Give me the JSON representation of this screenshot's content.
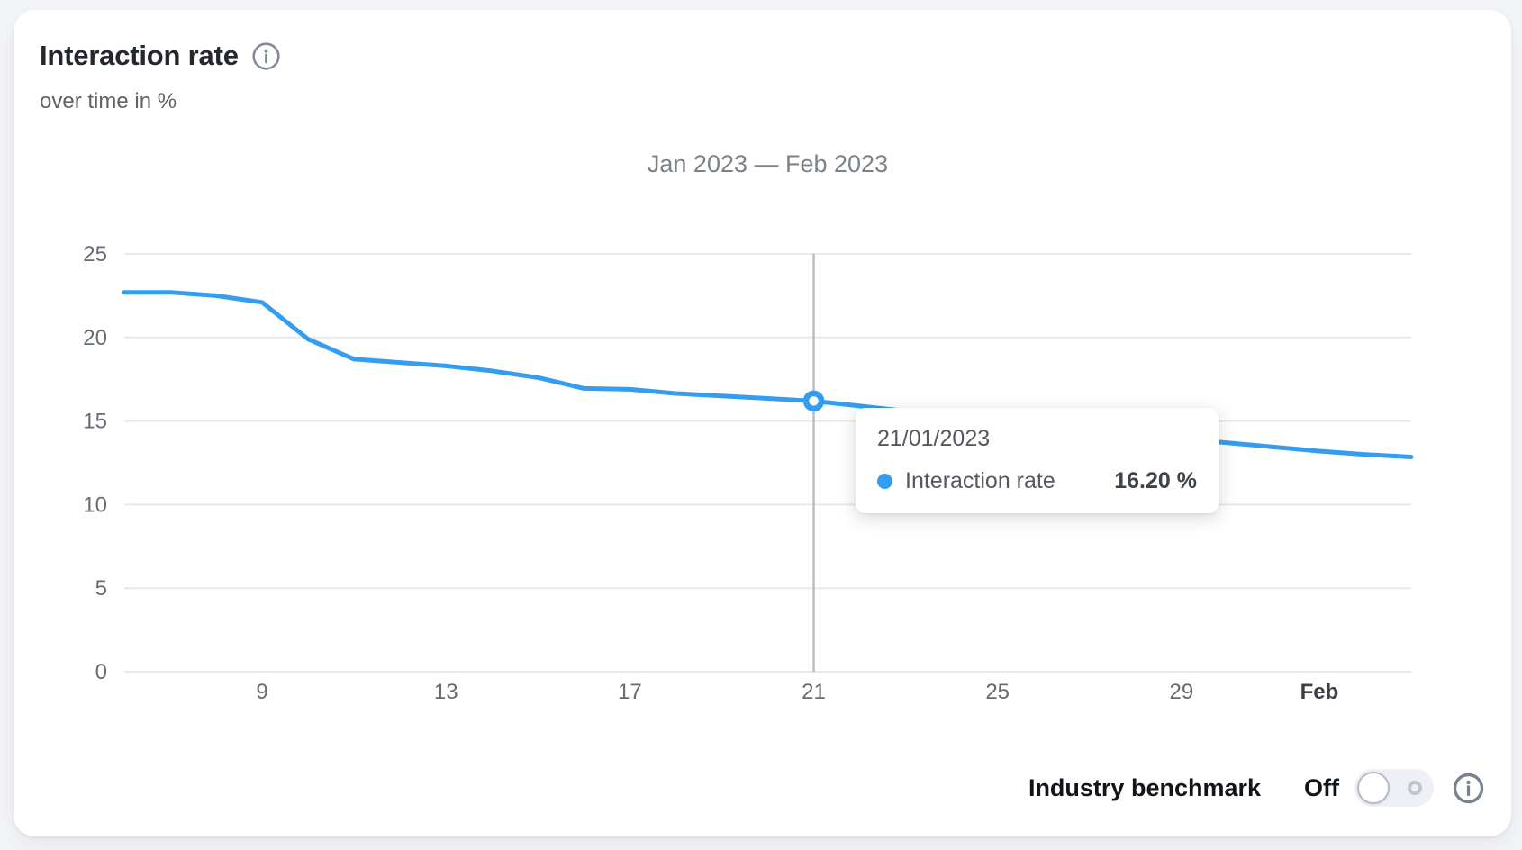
{
  "card": {
    "title": "Interaction rate",
    "subtitle": "over time in %"
  },
  "chart_data": {
    "type": "line",
    "title": "Jan 2023 — Feb 2023",
    "grid": "horizontal",
    "legend": "none",
    "ylim": [
      0,
      25
    ],
    "y_ticks": [
      0,
      5,
      10,
      15,
      20,
      25
    ],
    "x_dates": [
      "2023-01-06",
      "2023-01-07",
      "2023-01-08",
      "2023-01-09",
      "2023-01-10",
      "2023-01-11",
      "2023-01-12",
      "2023-01-13",
      "2023-01-14",
      "2023-01-15",
      "2023-01-16",
      "2023-01-17",
      "2023-01-18",
      "2023-01-19",
      "2023-01-20",
      "2023-01-21",
      "2023-01-22",
      "2023-01-23",
      "2023-01-24",
      "2023-01-25",
      "2023-01-26",
      "2023-01-27",
      "2023-01-28",
      "2023-01-29",
      "2023-01-30",
      "2023-01-31",
      "2023-02-01",
      "2023-02-02",
      "2023-02-03"
    ],
    "x_ticks": [
      {
        "date": "2023-01-09",
        "label": "9",
        "bold": false
      },
      {
        "date": "2023-01-13",
        "label": "13",
        "bold": false
      },
      {
        "date": "2023-01-17",
        "label": "17",
        "bold": false
      },
      {
        "date": "2023-01-21",
        "label": "21",
        "bold": false
      },
      {
        "date": "2023-01-25",
        "label": "25",
        "bold": false
      },
      {
        "date": "2023-01-29",
        "label": "29",
        "bold": false
      },
      {
        "date": "2023-02-01",
        "label": "Feb",
        "bold": true
      }
    ],
    "series": [
      {
        "name": "Interaction rate",
        "color": "#359df0",
        "values": [
          22.7,
          22.7,
          22.5,
          22.1,
          19.9,
          18.7,
          18.5,
          18.3,
          18.0,
          17.6,
          16.95,
          16.9,
          16.65,
          16.5,
          16.35,
          16.2,
          15.9,
          15.6,
          15.35,
          15.1,
          14.8,
          14.5,
          14.2,
          13.95,
          13.7,
          13.45,
          13.2,
          13.0,
          12.85
        ]
      }
    ],
    "highlight": {
      "date": "2023-01-21",
      "value": 16.2
    },
    "crosshair_color": "#b9bdc2",
    "gridline_color": "#e8e9eb"
  },
  "tooltip": {
    "date_label": "21/01/2023",
    "series_label": "Interaction rate",
    "value_label": "16.20 %"
  },
  "benchmark": {
    "label": "Industry benchmark",
    "state_label": "Off",
    "enabled": false
  }
}
